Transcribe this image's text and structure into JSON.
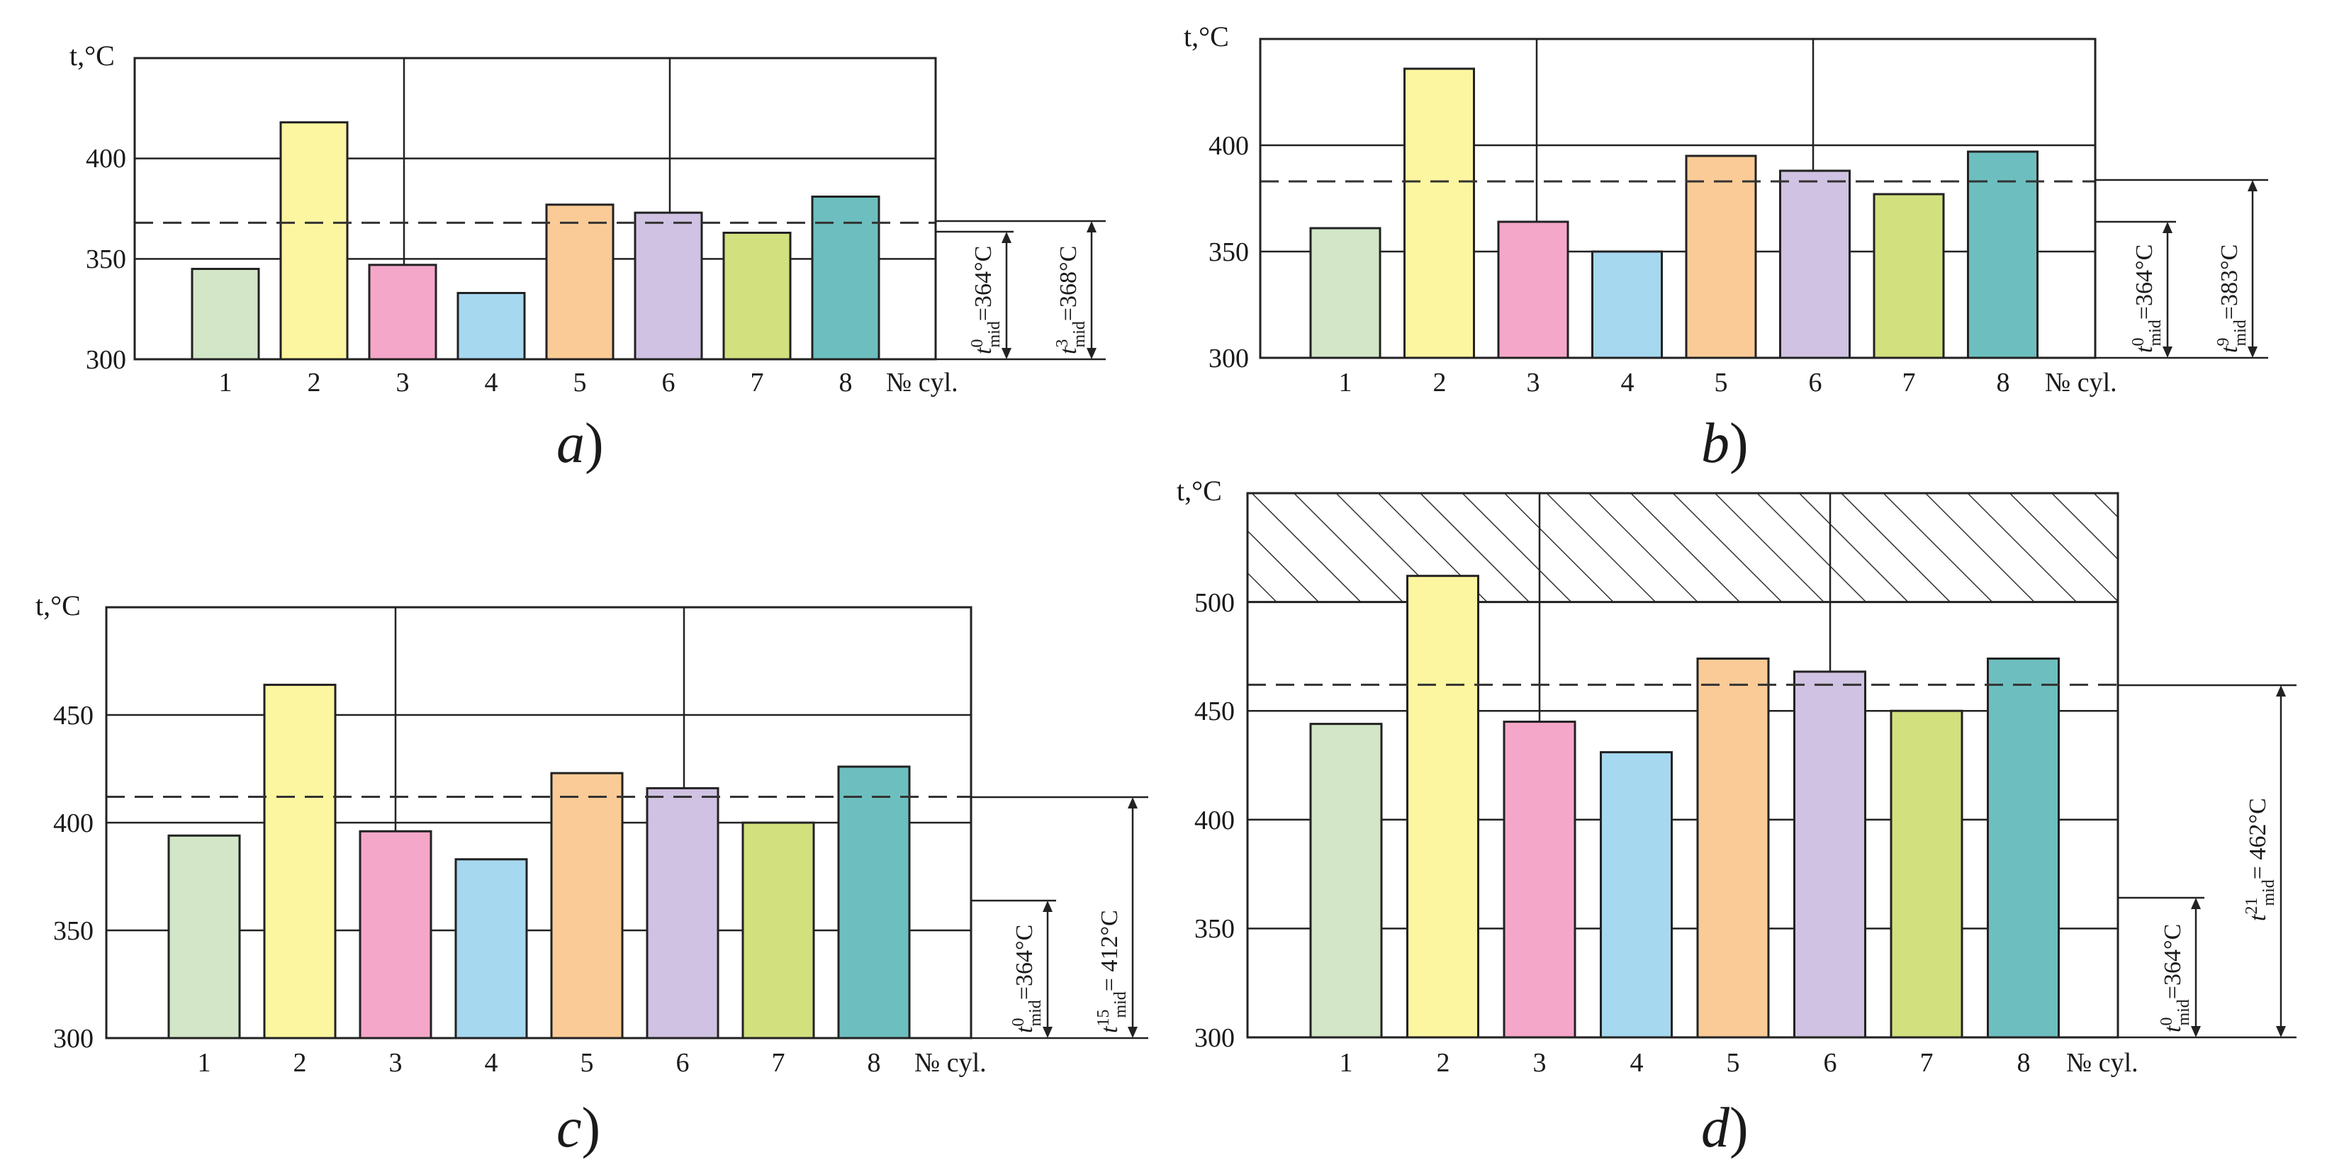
{
  "figure": {
    "colors": {
      "cyl1": "#d3e7c8",
      "cyl2": "#fdf6a0",
      "cyl3": "#f5a7c9",
      "cyl4": "#a6d8f0",
      "cyl5": "#fbcb97",
      "cyl6": "#d0c2e2",
      "cyl7": "#d3e07e",
      "cyl8": "#6dbfbf",
      "hatch": "#333333"
    }
  },
  "chart_data": [
    {
      "type": "bar",
      "panel_label": "a",
      "ylabel": "t,°C",
      "xlabel": "№ cyl.",
      "categories": [
        "1",
        "2",
        "3",
        "4",
        "5",
        "6",
        "7",
        "8"
      ],
      "values": [
        345,
        418,
        347,
        333,
        377,
        373,
        363,
        381
      ],
      "ylim": [
        300,
        450
      ],
      "yticks": [
        "300",
        "350",
        "400"
      ],
      "mean_line": 368,
      "baseline_mean": 364,
      "annotations": [
        {
          "symbol": "t",
          "sup": "0",
          "sub": "mid",
          "text": "=364°C",
          "value": 364
        },
        {
          "symbol": "t",
          "sup": "3",
          "sub": "mid",
          "text": "=368°C",
          "value": 368
        }
      ]
    },
    {
      "type": "bar",
      "panel_label": "b",
      "ylabel": "t,°C",
      "xlabel": "№ cyl.",
      "categories": [
        "1",
        "2",
        "3",
        "4",
        "5",
        "6",
        "7",
        "8"
      ],
      "values": [
        361,
        436,
        364,
        350,
        395,
        388,
        377,
        397
      ],
      "ylim": [
        300,
        450
      ],
      "yticks": [
        "300",
        "350",
        "400"
      ],
      "mean_line": 383,
      "baseline_mean": 364,
      "annotations": [
        {
          "symbol": "t",
          "sup": "0",
          "sub": "mid",
          "text": "=364°C",
          "value": 364
        },
        {
          "symbol": "t",
          "sup": "9",
          "sub": "mid",
          "text": "=383°C",
          "value": 383
        }
      ]
    },
    {
      "type": "bar",
      "panel_label": "c",
      "ylabel": "t,°C",
      "xlabel": "№ cyl.",
      "categories": [
        "1",
        "2",
        "3",
        "4",
        "5",
        "6",
        "7",
        "8"
      ],
      "values": [
        394,
        464,
        396,
        383,
        423,
        416,
        400,
        426
      ],
      "ylim": [
        300,
        500
      ],
      "yticks": [
        "300",
        "350",
        "400",
        "450"
      ],
      "mean_line": 412,
      "baseline_mean": 364,
      "annotations": [
        {
          "symbol": "t",
          "sup": "0",
          "sub": "mid",
          "text": "=364°C",
          "value": 364
        },
        {
          "symbol": "t",
          "sup": "15",
          "sub": "mid",
          "text": "= 412°C",
          "value": 412
        }
      ]
    },
    {
      "type": "bar",
      "panel_label": "d",
      "ylabel": "t,°C",
      "xlabel": "№ cyl.",
      "categories": [
        "1",
        "2",
        "3",
        "4",
        "5",
        "6",
        "7",
        "8"
      ],
      "values": [
        444,
        512,
        445,
        431,
        474,
        468,
        450,
        474
      ],
      "ylim": [
        300,
        550
      ],
      "yticks": [
        "300",
        "350",
        "400",
        "450",
        "500"
      ],
      "hatched_zone": [
        500,
        550
      ],
      "mean_line": 462,
      "baseline_mean": 364,
      "annotations": [
        {
          "symbol": "t",
          "sup": "0",
          "sub": "mid",
          "text": "=364°C",
          "value": 364
        },
        {
          "symbol": "t",
          "sup": "21",
          "sub": "mid",
          "text": "= 462°C",
          "value": 462
        }
      ]
    }
  ]
}
